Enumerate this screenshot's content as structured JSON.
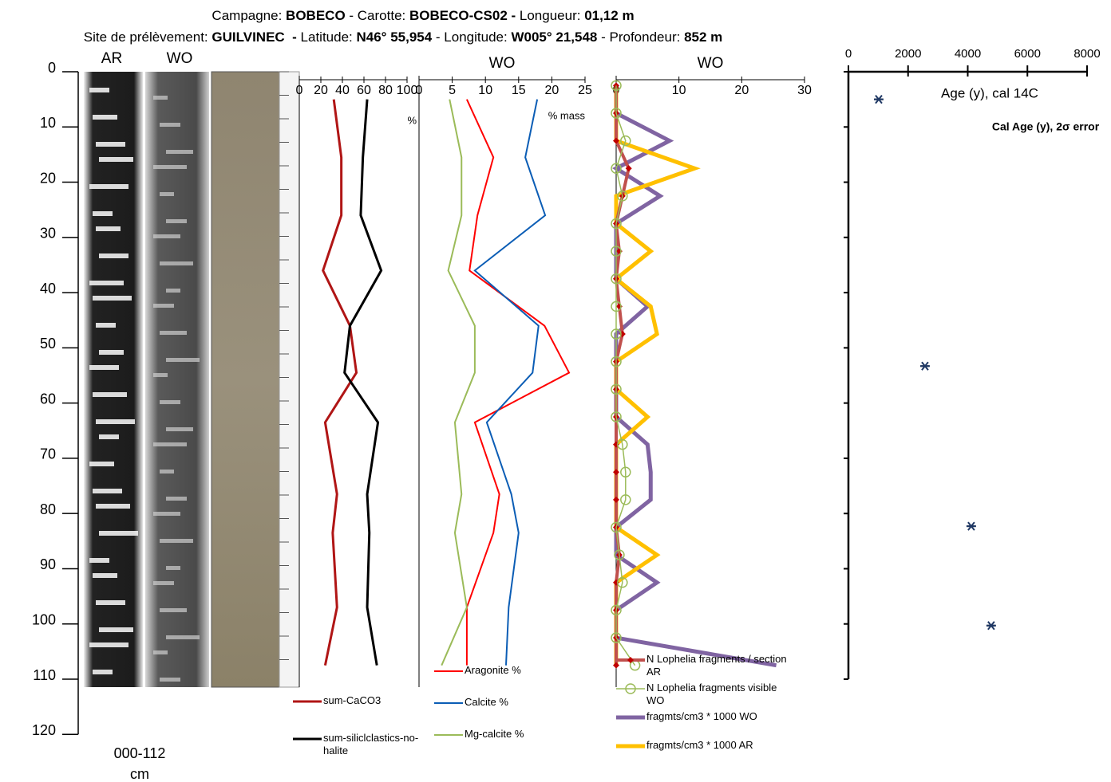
{
  "header": {
    "line1": [
      {
        "text": "Campagne: ",
        "bold": false
      },
      {
        "text": "BOBECO",
        "bold": true
      },
      {
        "text": " - Carotte: ",
        "bold": false
      },
      {
        "text": "BOBECO-CS02 -",
        "bold": true
      },
      {
        "text": " Longueur: ",
        "bold": false
      },
      {
        "text": "01,12 m",
        "bold": true
      }
    ],
    "line2": [
      {
        "text": "Site de prélèvement: ",
        "bold": false
      },
      {
        "text": "GUILVINEC  -",
        "bold": true
      },
      {
        "text": " Latitude: ",
        "bold": false
      },
      {
        "text": "N46° 55,954",
        "bold": true
      },
      {
        "text": " - Longitude: ",
        "bold": false
      },
      {
        "text": "W005° 21,548",
        "bold": true
      },
      {
        "text": " - Profondeur: ",
        "bold": false
      },
      {
        "text": "852 m",
        "bold": true
      }
    ]
  },
  "chart_data": [
    {
      "type": "axis",
      "core_labels": [
        "AR",
        "WO"
      ],
      "ylim": [
        0,
        120
      ],
      "yticks": [
        0,
        10,
        20,
        30,
        40,
        50,
        60,
        70,
        80,
        90,
        100,
        110,
        120
      ],
      "y_label": "000-112",
      "y_unit": "cm"
    },
    {
      "type": "line",
      "x_label": "%",
      "xlim": [
        0,
        100
      ],
      "xticks": [
        0,
        20,
        40,
        60,
        80,
        100
      ],
      "ylim": [
        0,
        120
      ],
      "y": [
        5,
        15.5,
        26,
        36,
        46,
        54.5,
        63.5,
        76.5,
        83.5,
        97,
        107.5
      ],
      "series": [
        {
          "name": "sum-CaCO3",
          "color": "#b01515",
          "width": 3,
          "values": [
            32,
            39,
            39,
            22,
            47,
            53,
            24,
            35,
            31,
            35,
            24
          ]
        },
        {
          "name": "sum-siliclclastics-no-halite",
          "color": "#000000",
          "width": 3,
          "values": [
            63,
            59,
            57,
            76,
            47,
            42,
            73,
            63,
            65,
            63,
            72
          ]
        }
      ]
    },
    {
      "type": "line",
      "title": "WO",
      "x_label": "% mass",
      "xlim": [
        0,
        25
      ],
      "xticks": [
        0,
        5,
        10,
        15,
        20,
        25
      ],
      "ylim": [
        0,
        120
      ],
      "y": [
        5,
        15.5,
        26,
        36,
        46,
        54.5,
        63.5,
        76.5,
        83.5,
        97,
        107.5
      ],
      "series": [
        {
          "name": "Aragonite %",
          "color": "#ff0000",
          "width": 2,
          "values": [
            7.2,
            11.2,
            8.8,
            7.6,
            18.9,
            22.6,
            8.4,
            12.1,
            11.2,
            7.2,
            7.2
          ]
        },
        {
          "name": "Calcite %",
          "color": "#0b5db5",
          "width": 2,
          "values": [
            17.8,
            16.0,
            19.0,
            8.4,
            18.0,
            17.1,
            10.2,
            13.9,
            15.0,
            13.5,
            13.1
          ]
        },
        {
          "name": "Mg-calcite %",
          "color": "#9bbb59",
          "width": 2,
          "values": [
            4.6,
            6.4,
            6.4,
            4.4,
            8.4,
            8.4,
            5.4,
            6.4,
            5.4,
            7.2,
            3.4
          ]
        }
      ]
    },
    {
      "type": "line",
      "title": "WO",
      "xlim": [
        0,
        30
      ],
      "xticks": [
        0,
        10,
        20,
        30
      ],
      "ylim": [
        0,
        120
      ],
      "y": [
        2.5,
        7.5,
        12.5,
        17.5,
        22.5,
        27.5,
        32.5,
        37.5,
        42.5,
        47.5,
        52.5,
        57.5,
        62.5,
        67.5,
        72.5,
        77.5,
        82.5,
        87.5,
        92.5,
        97.5,
        102.5,
        107.5
      ],
      "series": [
        {
          "name": "fragmts/cm3 * 1000 WO",
          "color": "#8064a2",
          "width": 5,
          "values": [
            0,
            0,
            8.5,
            0,
            7,
            0,
            0,
            0,
            5,
            0,
            0,
            0,
            0,
            5,
            5.5,
            5.5,
            0,
            0,
            6.5,
            0,
            0,
            25.5
          ]
        },
        {
          "name": "fragmts/cm3 * 1000 AR",
          "color": "#ffc000",
          "width": 5,
          "values": [
            0,
            0,
            0,
            12.5,
            0,
            0,
            5.5,
            0,
            5.5,
            6.5,
            0,
            0,
            5,
            0,
            0,
            0,
            0,
            6.5,
            0,
            0,
            0,
            0
          ]
        },
        {
          "name": "N Lophelia fragments / section AR",
          "color": "#c0504d",
          "width": 4,
          "marker": "diamond",
          "values": [
            0,
            0,
            0,
            2,
            1,
            0,
            0.5,
            0,
            0.5,
            1,
            0,
            0,
            0,
            0,
            0,
            0,
            0,
            0.5,
            0,
            0,
            0,
            0
          ]
        },
        {
          "name": "N Lophelia fragments visible WO",
          "color": "#9bbb59",
          "width": 1.5,
          "marker": "circle",
          "values": [
            0,
            0,
            1.5,
            0,
            1,
            0,
            0,
            0,
            0,
            0,
            0,
            0,
            0,
            1,
            1.5,
            1.5,
            0,
            0.5,
            1,
            0,
            0,
            3
          ]
        }
      ],
      "legend_order": [
        2,
        3,
        0,
        1
      ]
    },
    {
      "type": "scatter",
      "xlim": [
        0,
        8000
      ],
      "xticks": [
        0,
        2000,
        4000,
        6000,
        8000
      ],
      "ylim": [
        0,
        110
      ],
      "yticks": [
        0,
        10,
        20,
        30,
        40,
        50,
        60,
        70,
        80,
        90,
        100,
        110
      ],
      "annotations": [
        "Age (y), cal 14C",
        "Cal Age (y), 2σ error"
      ],
      "series": [
        {
          "color": "#1f3864",
          "x": [
            1016,
            2567,
            4118,
            4786
          ],
          "error": [
            150,
            150,
            150,
            150
          ],
          "y": [
            5,
            53.3,
            82.3,
            100.3
          ]
        }
      ]
    }
  ]
}
